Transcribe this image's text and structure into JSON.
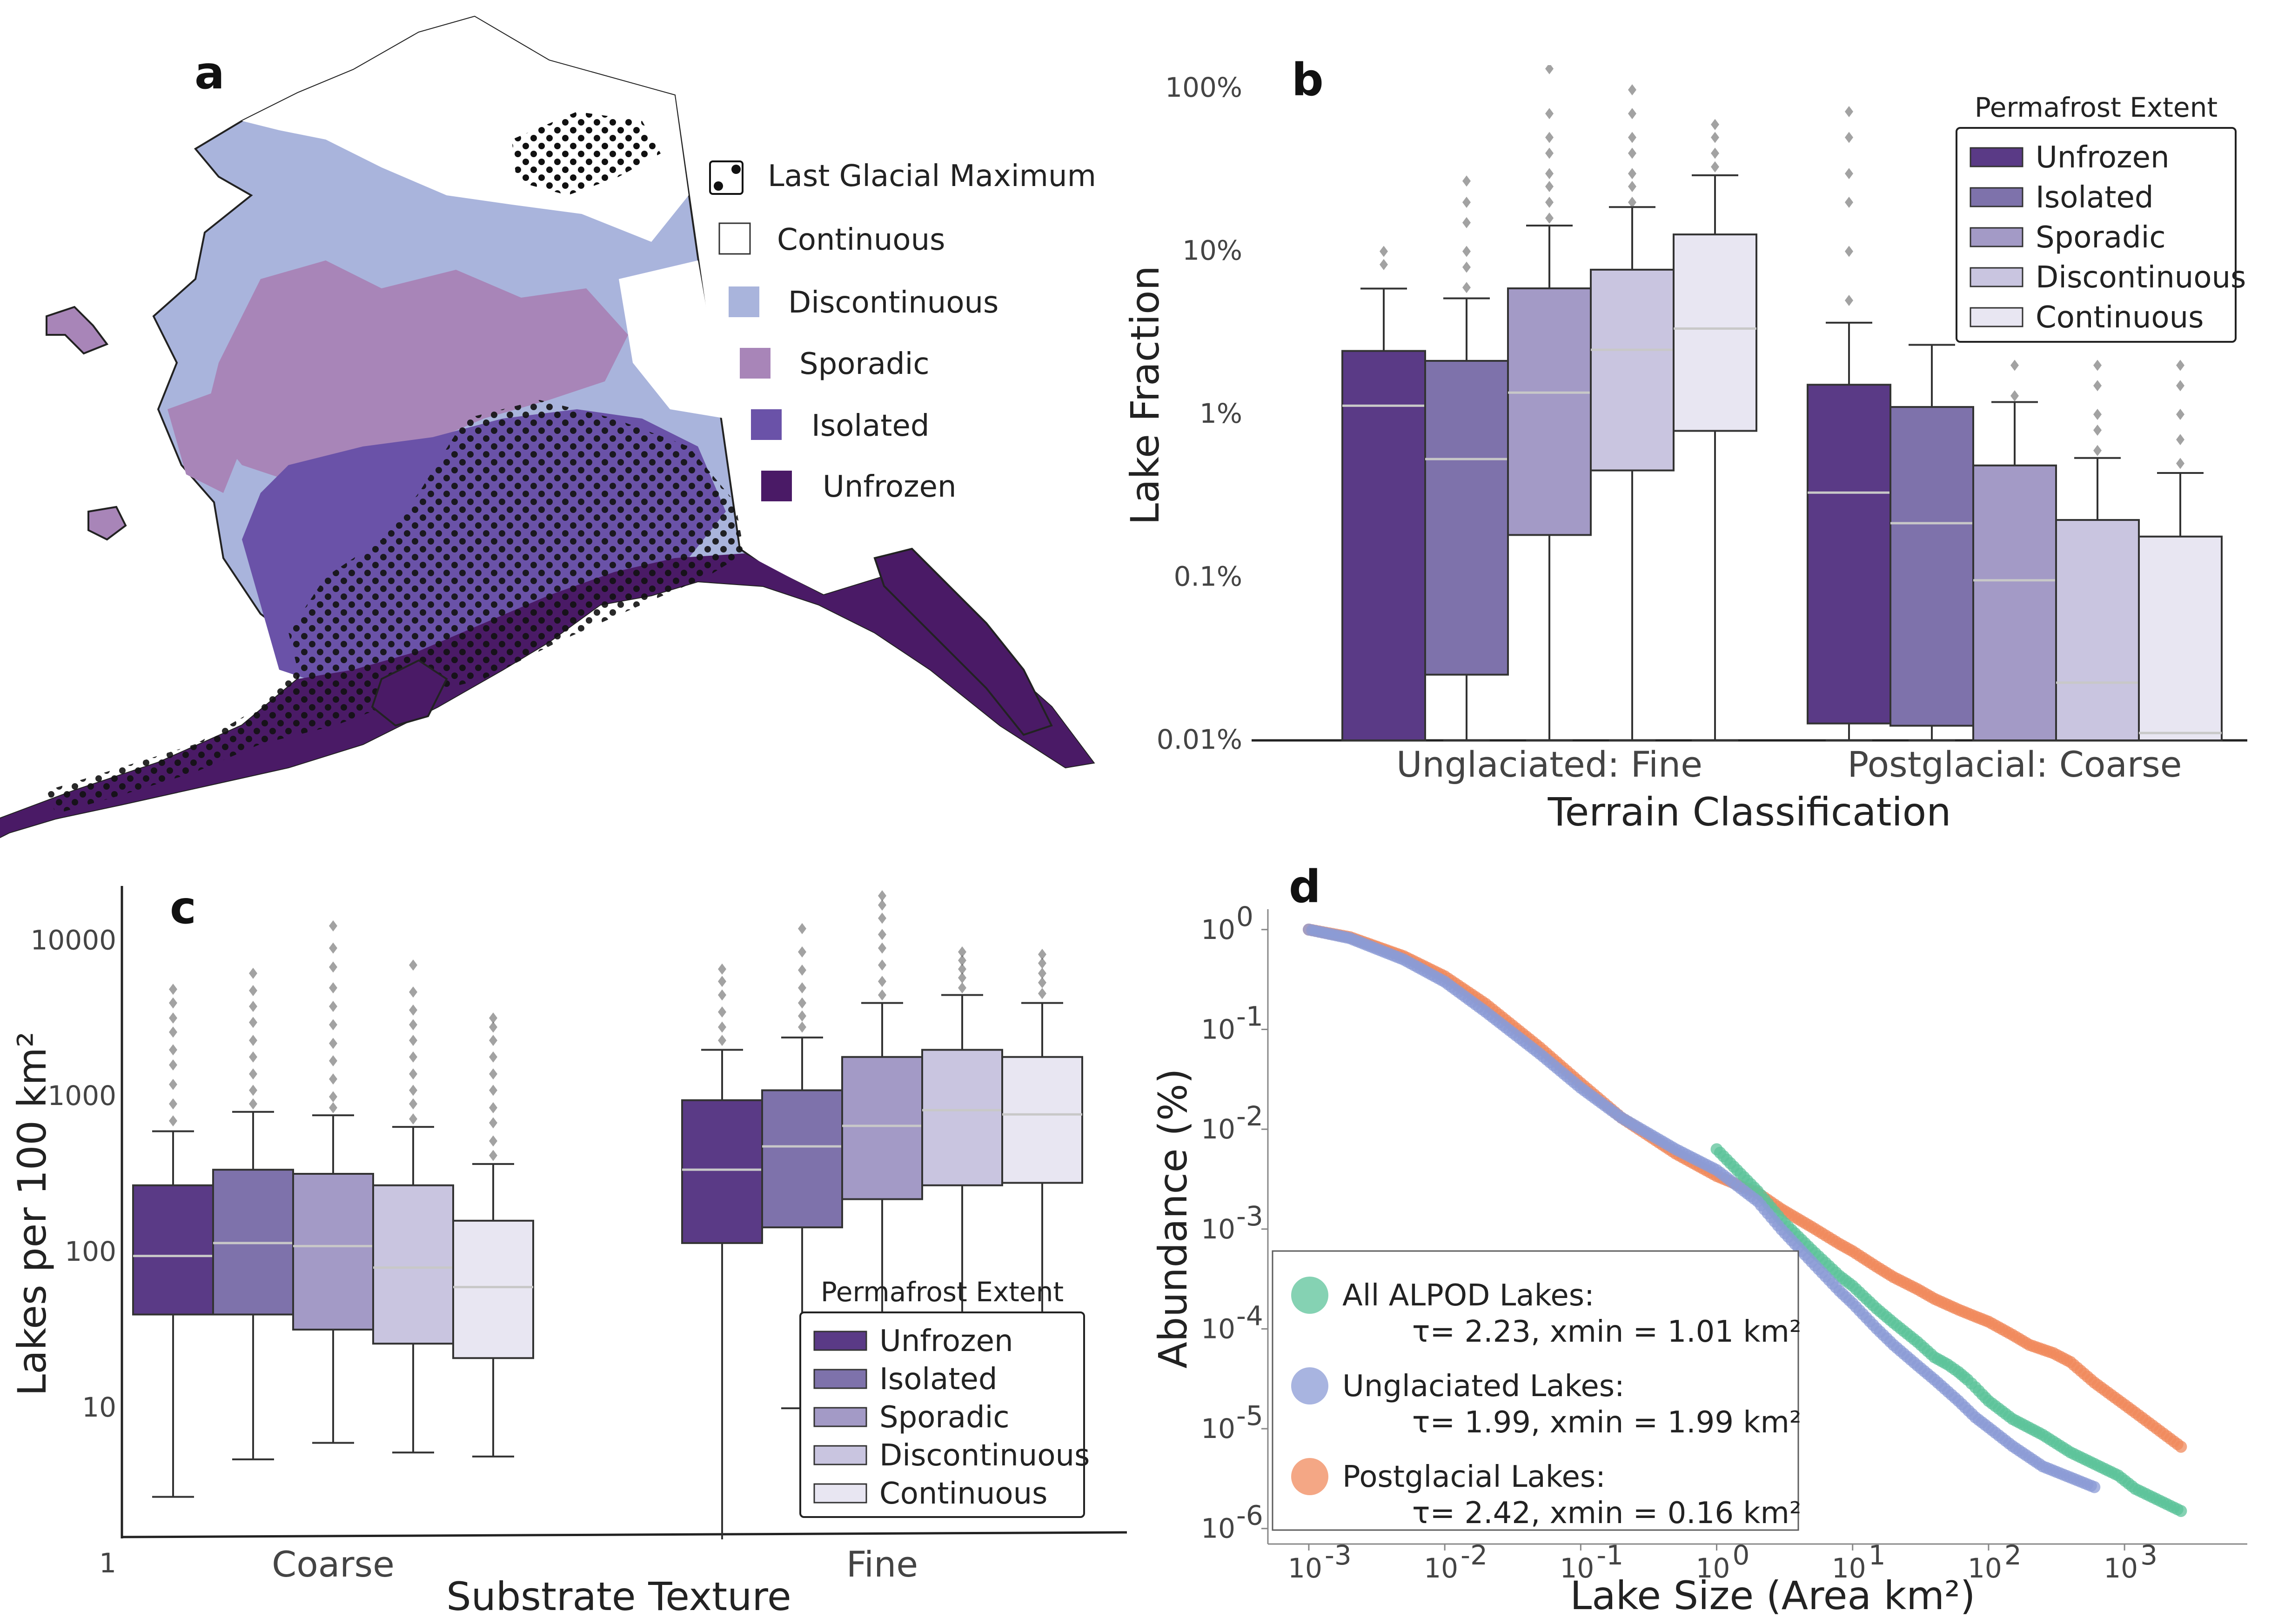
{
  "panel_letters": {
    "a": "a",
    "b": "b",
    "c": "c",
    "d": "d"
  },
  "colors": {
    "Unfrozen": "#5a3a86",
    "Isolated": "#7e72ab",
    "Sporadic": "#a39ac6",
    "Discontinuous": "#c9c5e0",
    "Continuous": "#e8e6f2",
    "map_unfrozen": "#4a1a66",
    "map_isolated": "#6a52a8",
    "map_sporadic": "#a885b8",
    "map_discontinuous": "#a9b4dc",
    "map_continuous": "#ffffff",
    "all_alpod": "#5cc39a",
    "unglaciated": "#8b9bd6",
    "postglacial": "#f08a5c"
  },
  "map_legend": [
    {
      "label": "Last Glacial Maximum",
      "key": "lgm"
    },
    {
      "label": "Continuous",
      "key": "map_continuous"
    },
    {
      "label": "Discontinuous",
      "key": "map_discontinuous"
    },
    {
      "label": "Sporadic",
      "key": "map_sporadic"
    },
    {
      "label": "Isolated",
      "key": "map_isolated"
    },
    {
      "label": "Unfrozen",
      "key": "map_unfrozen"
    }
  ],
  "chart_data": [
    {
      "panel": "b",
      "type": "box",
      "xlabel": "Terrain Classification",
      "ylabel": "Lake  Fraction",
      "yscale": "log",
      "ylim": [
        0.0001,
        1.0
      ],
      "ytick_values": [
        0.0001,
        0.001,
        0.01,
        0.1,
        1.0
      ],
      "ytick_labels": [
        "0.01%",
        "0.1%",
        "1%",
        "10%",
        "100%"
      ],
      "categories": [
        "Unglaciated:  Fine",
        "Postglacial:  Coarse"
      ],
      "legend_title": "Permafrost Extent",
      "legend_position": "top-right",
      "series": [
        {
          "name": "Unfrozen",
          "boxes": [
            {
              "whislo": 0.0001,
              "q1": 0.0001,
              "med": 0.0113,
              "q3": 0.0245,
              "whishi": 0.0591,
              "outliers": [
                0.083,
                0.1
              ]
            },
            {
              "whislo": 0.0001,
              "q1": 0.000127,
              "med": 0.00331,
              "q3": 0.0152,
              "whishi": 0.0365,
              "outliers": [
                0.05,
                0.1,
                0.2,
                0.3,
                0.5,
                0.72
              ]
            }
          ]
        },
        {
          "name": "Isolated",
          "boxes": [
            {
              "whislo": 0.0001,
              "q1": 0.000253,
              "med": 0.00532,
              "q3": 0.0213,
              "whishi": 0.0515,
              "outliers": [
                0.06,
                0.08,
                0.1,
                0.15,
                0.2,
                0.27
              ]
            },
            {
              "whislo": 0.0001,
              "q1": 0.000123,
              "med": 0.00215,
              "q3": 0.0111,
              "whishi": 0.0267,
              "outliers": []
            }
          ]
        },
        {
          "name": "Sporadic",
          "boxes": [
            {
              "whislo": 0.0001,
              "q1": 0.00182,
              "med": 0.0136,
              "q3": 0.0593,
              "whishi": 0.144,
              "outliers": [
                0.16,
                0.2,
                0.25,
                0.3,
                0.4,
                0.5,
                0.7,
                1.32
              ]
            },
            {
              "whislo": 0.0001,
              "q1": 0.0001,
              "med": 0.00096,
              "q3": 0.00486,
              "whishi": 0.0119,
              "outliers": [
                0.013,
                0.02,
                0.03,
                0.05,
                0.08,
                0.12
              ]
            }
          ]
        },
        {
          "name": "Discontinuous",
          "boxes": [
            {
              "whislo": 0.0001,
              "q1": 0.00453,
              "med": 0.0249,
              "q3": 0.0772,
              "whishi": 0.187,
              "outliers": [
                0.2,
                0.25,
                0.3,
                0.4,
                0.5,
                0.7,
                0.98
              ]
            },
            {
              "whislo": 0.0001,
              "q1": 0.0001,
              "med": 0.000226,
              "q3": 0.00225,
              "whishi": 0.0054,
              "outliers": [
                0.006,
                0.008,
                0.01,
                0.015,
                0.02,
                0.03,
                0.05,
                0.08,
                0.12,
                0.18
              ]
            }
          ]
        },
        {
          "name": "Continuous",
          "boxes": [
            {
              "whislo": 0.0001,
              "q1": 0.00792,
              "med": 0.0336,
              "q3": 0.127,
              "whishi": 0.293,
              "outliers": [
                0.33,
                0.4,
                0.5,
                0.6
              ]
            },
            {
              "whislo": 0.0001,
              "q1": 0.0001,
              "med": 0.000111,
              "q3": 0.00178,
              "whishi": 0.00437,
              "outliers": [
                0.005,
                0.007,
                0.01,
                0.015,
                0.02,
                0.03,
                0.05,
                0.08,
                0.12,
                0.18
              ]
            }
          ]
        }
      ]
    },
    {
      "panel": "c",
      "type": "box",
      "xlabel": "Substrate Texture",
      "ylabel": "Lakes per 100 km²",
      "yscale": "log",
      "ylim": [
        0.7,
        25000
      ],
      "ytick_values": [
        1,
        10,
        100,
        1000,
        10000
      ],
      "ytick_labels": [
        "1",
        "10",
        "100",
        "1000",
        "10000"
      ],
      "categories": [
        "Coarse",
        "Fine"
      ],
      "legend_title": "Permafrost Extent",
      "legend_position": "lower-right",
      "series": [
        {
          "name": "Unfrozen",
          "boxes": [
            {
              "whislo": 2.7,
              "q1": 40,
              "med": 95,
              "q3": 270,
              "whishi": 600,
              "outliers": [
                700,
                900,
                1200,
                1600,
                2000,
                2600,
                3200,
                4000,
                4900
              ]
            },
            {
              "whislo": 1.2,
              "q1": 115,
              "med": 340,
              "q3": 950,
              "whishi": 2000,
              "outliers": [
                2300,
                2800,
                3500,
                4500,
                5500,
                6600
              ]
            }
          ]
        },
        {
          "name": "Isolated",
          "boxes": [
            {
              "whislo": 4.7,
              "q1": 40,
              "med": 115,
              "q3": 340,
              "whishi": 800,
              "outliers": [
                900,
                1100,
                1400,
                1800,
                2300,
                3000,
                3800,
                4800,
                6200
              ]
            },
            {
              "whislo": 10,
              "q1": 145,
              "med": 480,
              "q3": 1100,
              "whishi": 2400,
              "outliers": [
                2800,
                3300,
                4000,
                5000,
                6500,
                8500,
                12000
              ]
            }
          ]
        },
        {
          "name": "Sporadic",
          "boxes": [
            {
              "whislo": 6,
              "q1": 32,
              "med": 110,
              "q3": 320,
              "whishi": 760,
              "outliers": [
                850,
                1000,
                1300,
                1700,
                2200,
                2900,
                3800,
                5000,
                6800,
                9000,
                12500
              ]
            },
            {
              "whislo": 10,
              "q1": 220,
              "med": 650,
              "q3": 1800,
              "whishi": 4000,
              "outliers": [
                4500,
                5500,
                7000,
                9000,
                11000,
                14000,
                17000,
                19500
              ]
            }
          ]
        },
        {
          "name": "Discontinuous",
          "boxes": [
            {
              "whislo": 5.2,
              "q1": 26,
              "med": 80,
              "q3": 270,
              "whishi": 640,
              "outliers": [
                720,
                900,
                1100,
                1400,
                1800,
                2300,
                2900,
                3600,
                4700,
                7000
              ]
            },
            {
              "whislo": 10,
              "q1": 270,
              "med": 820,
              "q3": 2000,
              "whishi": 4500,
              "outliers": [
                5000,
                5800,
                6600,
                7500,
                8500
              ]
            }
          ]
        },
        {
          "name": "Continuous",
          "boxes": [
            {
              "whislo": 4.9,
              "q1": 21,
              "med": 60,
              "q3": 160,
              "whishi": 370,
              "outliers": [
                420,
                520,
                680,
                850,
                1100,
                1400,
                1800,
                2300,
                2800,
                3200
              ]
            },
            {
              "whislo": 6.5,
              "q1": 280,
              "med": 770,
              "q3": 1800,
              "whishi": 4000,
              "outliers": [
                4600,
                5400,
                6200,
                7200,
                8200
              ]
            }
          ]
        }
      ]
    },
    {
      "panel": "d",
      "type": "scatter",
      "xlabel": "Lake Size (Area km²)",
      "ylabel": "Abundance (%)",
      "xscale": "log",
      "yscale": "log",
      "xlim": [
        0.0005,
        8000
      ],
      "ylim": [
        7e-07,
        1.6
      ],
      "xtick_values": [
        0.001,
        0.01,
        0.1,
        1,
        10,
        100,
        1000
      ],
      "xtick_labels": [
        "10",
        "10",
        "10",
        "10",
        "10",
        "10",
        "10"
      ],
      "xtick_exponents": [
        "-3",
        "-2",
        "-1",
        "0",
        "1",
        "2",
        "3"
      ],
      "ytick_values": [
        1e-06,
        1e-05,
        0.0001,
        0.001,
        0.01,
        0.1,
        1
      ],
      "ytick_labels": [
        "10",
        "10",
        "10",
        "10",
        "10",
        "10",
        "10"
      ],
      "ytick_exponents": [
        "-6",
        "-5",
        "-4",
        "-3",
        "-2",
        "-1",
        "0"
      ],
      "legend_position": "lower-left",
      "series": [
        {
          "name": "All ALPOD Lakes:",
          "stats": "τ=  2.23, xmin = 1.01 km²",
          "color_key": "all_alpod",
          "points": [
            [
              1,
              0.0063
            ],
            [
              2,
              0.0024
            ],
            [
              3,
              0.00123
            ],
            [
              5,
              0.00062
            ],
            [
              8,
              0.00034
            ],
            [
              10,
              0.00027
            ],
            [
              15,
              0.00016
            ],
            [
              20,
              0.000115
            ],
            [
              30,
              7.4e-05
            ],
            [
              40,
              5.2e-05
            ],
            [
              50,
              4.4e-05
            ],
            [
              60,
              3.7e-05
            ],
            [
              70,
              3.1e-05
            ],
            [
              80,
              2.6e-05
            ],
            [
              90,
              2.2e-05
            ],
            [
              100,
              1.9e-05
            ],
            [
              150,
              1.25e-05
            ],
            [
              250,
              8.7e-06
            ],
            [
              400,
              5.8e-06
            ],
            [
              900,
              3.4e-06
            ],
            [
              1200,
              2.5e-06
            ],
            [
              2600,
              1.5e-06
            ]
          ]
        },
        {
          "name": "Unglaciated Lakes:",
          "stats": "τ=  1.99, xmin = 1.99 km²",
          "color_key": "unglaciated",
          "points": [
            [
              0.001,
              1.0
            ],
            [
              0.002,
              0.82
            ],
            [
              0.005,
              0.5
            ],
            [
              0.01,
              0.3
            ],
            [
              0.02,
              0.15
            ],
            [
              0.05,
              0.057
            ],
            [
              0.1,
              0.026
            ],
            [
              0.2,
              0.013
            ],
            [
              0.5,
              0.0063
            ],
            [
              1,
              0.0039
            ],
            [
              2,
              0.0019
            ],
            [
              3,
              0.00099
            ],
            [
              5,
              0.00047
            ],
            [
              8,
              0.00024
            ],
            [
              10,
              0.00018
            ],
            [
              15,
              0.000101
            ],
            [
              20,
              6.9e-05
            ],
            [
              30,
              4.3e-05
            ],
            [
              40,
              3.1e-05
            ],
            [
              60,
              1.9e-05
            ],
            [
              80,
              1.3e-05
            ],
            [
              100,
              1.03e-05
            ],
            [
              150,
              6.7e-06
            ],
            [
              250,
              4.2e-06
            ],
            [
              600,
              2.6e-06
            ]
          ]
        },
        {
          "name": "Postglacial Lakes:",
          "stats": "τ=  2.42, xmin = 0.16 km²",
          "color_key": "postglacial",
          "points": [
            [
              0.001,
              1.0
            ],
            [
              0.002,
              0.84
            ],
            [
              0.005,
              0.54
            ],
            [
              0.01,
              0.34
            ],
            [
              0.02,
              0.18
            ],
            [
              0.05,
              0.066
            ],
            [
              0.1,
              0.029
            ],
            [
              0.2,
              0.013
            ],
            [
              0.5,
              0.0057
            ],
            [
              1,
              0.0034
            ],
            [
              2,
              0.0023
            ],
            [
              3,
              0.00158
            ],
            [
              5,
              0.00105
            ],
            [
              8,
              0.00071
            ],
            [
              10,
              0.0006
            ],
            [
              15,
              0.00042
            ],
            [
              20,
              0.00033
            ],
            [
              30,
              0.00025
            ],
            [
              40,
              0.0002
            ],
            [
              60,
              0.000156
            ],
            [
              80,
              0.000133
            ],
            [
              100,
              0.000118
            ],
            [
              150,
              8.71e-05
            ],
            [
              200,
              6.91e-05
            ],
            [
              300,
              5.71e-05
            ],
            [
              400,
              4.66e-05
            ],
            [
              600,
              2.9e-05
            ],
            [
              1200,
              1.45e-05
            ],
            [
              2600,
              6.6e-06
            ]
          ]
        }
      ]
    }
  ]
}
